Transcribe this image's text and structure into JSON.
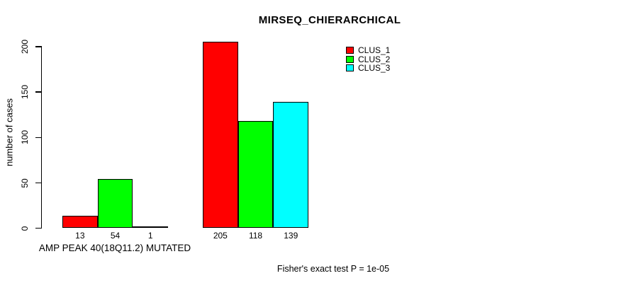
{
  "chart_data": {
    "type": "bar",
    "title": "MIRSEQ_CHIERARCHICAL",
    "ylabel": "number of cases",
    "xlabel": "AMP PEAK 40(18Q11.2) MUTATED",
    "footnote": "Fisher's exact test P = 1e-05",
    "ylim": [
      0,
      205
    ],
    "yticks": [
      0,
      50,
      100,
      150,
      200
    ],
    "grid": false,
    "legend_position": "top-right",
    "bar_border_color": "#000000",
    "bar_value_labels": true,
    "series": [
      {
        "name": "CLUS_1",
        "color": "#FF0000"
      },
      {
        "name": "CLUS_2",
        "color": "#00FF00"
      },
      {
        "name": "CLUS_3",
        "color": "#00FFFF"
      }
    ],
    "groups": [
      {
        "values": [
          13,
          54,
          1
        ]
      },
      {
        "values": [
          205,
          118,
          139
        ]
      }
    ]
  }
}
